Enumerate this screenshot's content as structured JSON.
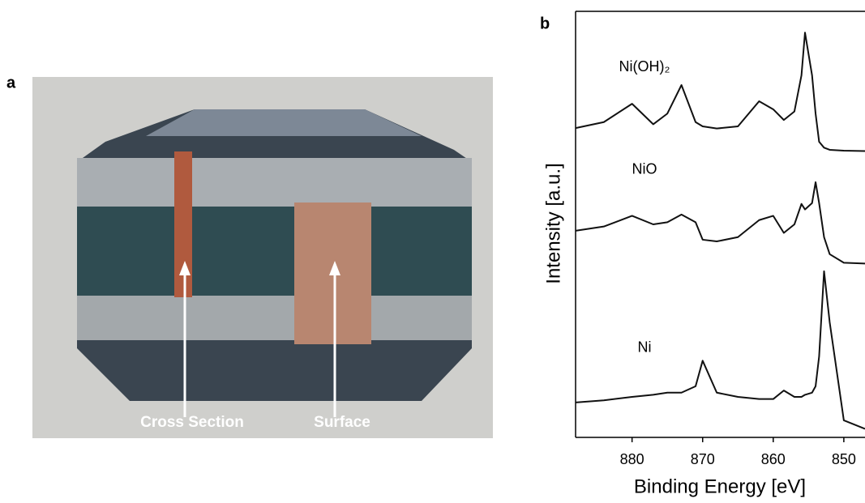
{
  "panel_a": {
    "label": "a",
    "annotations": [
      "Cross Section",
      "Surface"
    ]
  },
  "panel_b": {
    "label": "b"
  },
  "chart_data": {
    "type": "line",
    "xlabel": "Binding Energy [eV]",
    "ylabel": "Intensity [a.u.]",
    "x": [
      888,
      884,
      880,
      877,
      875,
      873,
      871,
      870,
      868,
      865,
      862,
      860,
      858.5,
      857,
      856,
      855.5,
      854.5,
      854,
      853.5,
      852.8,
      852,
      850,
      847
    ],
    "xlim": [
      888,
      847
    ],
    "xticks": [
      880,
      870,
      860,
      850
    ],
    "ylim": [
      0,
      100
    ],
    "series": [
      {
        "name": "Ni(OH)₂",
        "color": "#111111",
        "values": [
          72.6,
          74,
          78.3,
          73.5,
          76,
          82.7,
          74,
          73,
          72.5,
          73,
          78.9,
          77,
          74.5,
          76.5,
          85,
          95,
          85,
          76,
          69.4,
          68,
          67.5,
          67.3,
          67.2
        ]
      },
      {
        "name": "NiO",
        "color": "#111111",
        "values": [
          48.5,
          49.5,
          52,
          50,
          50.5,
          52.3,
          50.5,
          46.4,
          46,
          47,
          51,
          52,
          48,
          50,
          54.8,
          53.5,
          55,
          59.9,
          55,
          47,
          43,
          41,
          40.8
        ]
      },
      {
        "name": "Ni",
        "color": "#111111",
        "values": [
          8.2,
          8.7,
          9.5,
          10,
          10.5,
          10.5,
          12,
          18,
          10.5,
          9.5,
          9,
          9,
          11,
          9.5,
          9.5,
          10,
          10.5,
          12,
          19,
          39,
          27,
          4,
          2
        ]
      }
    ]
  }
}
